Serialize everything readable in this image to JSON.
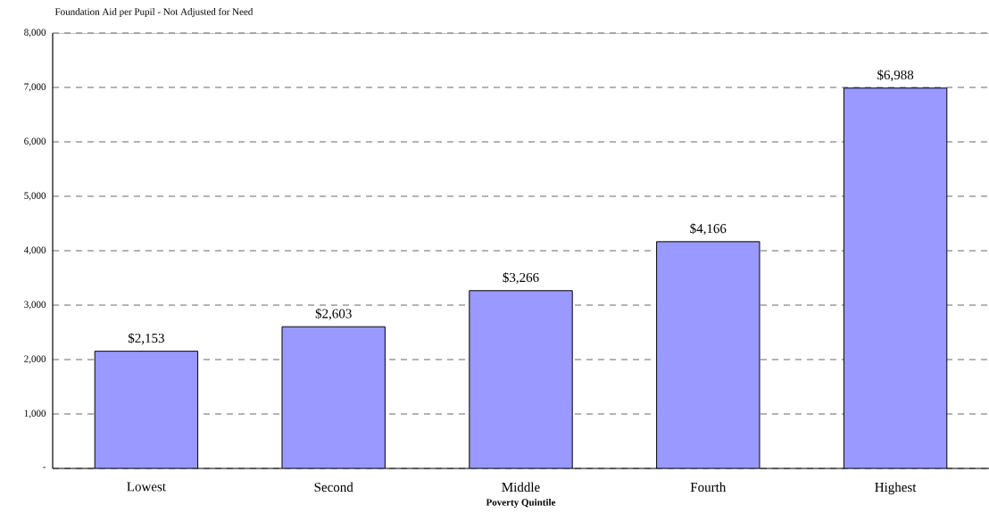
{
  "chart_data": {
    "type": "bar",
    "title": "Foundation Aid per Pupil - Not Adjusted for Need",
    "xlabel": "Poverty Quintile",
    "categories": [
      "Lowest",
      "Second",
      "Middle",
      "Fourth",
      "Highest"
    ],
    "values": [
      2153,
      2603,
      3266,
      4166,
      6988
    ],
    "value_labels": [
      "$2,153",
      "$2,603",
      "$3,266",
      "$4,166",
      "$6,988"
    ],
    "color": "#9999ff",
    "ylim": [
      0,
      8000
    ],
    "yticks": [
      {
        "value": 0,
        "label": "-"
      },
      {
        "value": 1000,
        "label": "1,000"
      },
      {
        "value": 2000,
        "label": "2,000"
      },
      {
        "value": 3000,
        "label": "3,000"
      },
      {
        "value": 4000,
        "label": "4,000"
      },
      {
        "value": 5000,
        "label": "5,000"
      },
      {
        "value": 6000,
        "label": "6,000"
      },
      {
        "value": 7000,
        "label": "7,000"
      },
      {
        "value": 8000,
        "label": "8,000"
      }
    ],
    "grid": "y"
  }
}
